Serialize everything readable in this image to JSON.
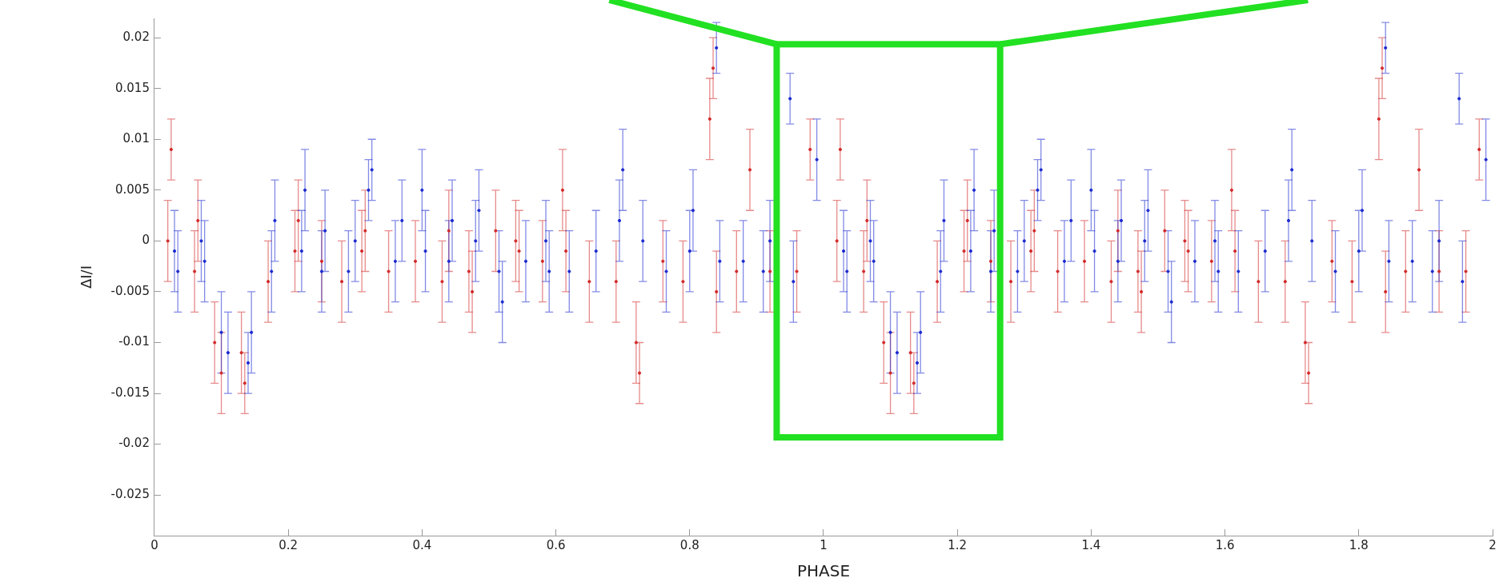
{
  "chart_data": {
    "type": "scatter",
    "xlabel": "PHASE",
    "ylabel": "ΔI/I",
    "xlim": [
      0,
      2
    ],
    "xticks": [
      0,
      0.2,
      0.4,
      0.6,
      0.8,
      1,
      1.2,
      1.4,
      1.6,
      1.8,
      2
    ],
    "ylim": [
      -0.029,
      0.0219
    ],
    "yticks": [
      -0.025,
      -0.02,
      -0.015,
      -0.01,
      -0.005,
      0,
      0.005,
      0.01,
      0.015,
      0.02
    ],
    "grid": false,
    "legend": false,
    "marker": "circle",
    "series": [
      {
        "color": "#d42a2a",
        "x": [
          0.02,
          0.025,
          0.06,
          0.065,
          0.09,
          0.1,
          0.13,
          0.135,
          0.17,
          0.21,
          0.215,
          0.25,
          0.28,
          0.31,
          0.315,
          0.35,
          0.39,
          0.43,
          0.44,
          0.47,
          0.475,
          0.51,
          0.54,
          0.545,
          0.58,
          0.61,
          0.615,
          0.65,
          0.69,
          0.72,
          0.725,
          0.76,
          0.79,
          0.83,
          0.835,
          0.84,
          0.87,
          0.89,
          0.92,
          0.96,
          0.98,
          1.02,
          1.025,
          1.06,
          1.065,
          1.09,
          1.1,
          1.13,
          1.135,
          1.17,
          1.21,
          1.215,
          1.25,
          1.28,
          1.31,
          1.315,
          1.35,
          1.39,
          1.43,
          1.44,
          1.47,
          1.475,
          1.51,
          1.54,
          1.545,
          1.58,
          1.61,
          1.615,
          1.65,
          1.69,
          1.72,
          1.725,
          1.76,
          1.79,
          1.83,
          1.835,
          1.84,
          1.87,
          1.89,
          1.92,
          1.96,
          1.98
        ],
        "values": [
          0,
          0.009,
          -0.003,
          0.002,
          -0.01,
          -0.013,
          -0.011,
          -0.014,
          -0.004,
          -0.001,
          0.002,
          -0.002,
          -0.004,
          -0.001,
          0.001,
          -0.003,
          -0.002,
          -0.004,
          0.001,
          -0.003,
          -0.005,
          0.001,
          0,
          -0.001,
          -0.002,
          0.005,
          -0.001,
          -0.004,
          -0.004,
          -0.01,
          -0.013,
          -0.002,
          -0.004,
          0.012,
          0.017,
          -0.005,
          -0.003,
          0.007,
          -0.003,
          -0.003,
          0.009,
          0,
          0.009,
          -0.003,
          0.002,
          -0.01,
          -0.013,
          -0.011,
          -0.014,
          -0.004,
          -0.001,
          0.002,
          -0.002,
          -0.004,
          -0.001,
          0.001,
          -0.003,
          -0.002,
          -0.004,
          0.001,
          -0.003,
          -0.005,
          0.001,
          0,
          -0.001,
          -0.002,
          0.005,
          -0.001,
          -0.004,
          -0.004,
          -0.01,
          -0.013,
          -0.002,
          -0.004,
          0.012,
          0.017,
          -0.005,
          -0.003,
          0.007,
          -0.003,
          -0.003,
          0.009
        ],
        "errors": [
          0.004,
          0.003,
          0.004,
          0.004,
          0.004,
          0.004,
          0.004,
          0.003,
          0.004,
          0.004,
          0.004,
          0.004,
          0.004,
          0.004,
          0.004,
          0.004,
          0.004,
          0.004,
          0.004,
          0.004,
          0.004,
          0.004,
          0.004,
          0.004,
          0.004,
          0.004,
          0.004,
          0.004,
          0.004,
          0.004,
          0.003,
          0.004,
          0.004,
          0.004,
          0.003,
          0.004,
          0.004,
          0.004,
          0.004,
          0.004,
          0.003,
          0.004,
          0.003,
          0.004,
          0.004,
          0.004,
          0.004,
          0.004,
          0.003,
          0.004,
          0.004,
          0.004,
          0.004,
          0.004,
          0.004,
          0.004,
          0.004,
          0.004,
          0.004,
          0.004,
          0.004,
          0.004,
          0.004,
          0.004,
          0.004,
          0.004,
          0.004,
          0.004,
          0.004,
          0.004,
          0.004,
          0.003,
          0.004,
          0.004,
          0.004,
          0.003,
          0.004,
          0.004,
          0.004,
          0.004,
          0.004,
          0.003
        ]
      },
      {
        "color": "#1c2ad0",
        "x": [
          0.03,
          0.035,
          0.07,
          0.075,
          0.1,
          0.11,
          0.14,
          0.145,
          0.175,
          0.18,
          0.22,
          0.225,
          0.25,
          0.255,
          0.29,
          0.3,
          0.32,
          0.325,
          0.36,
          0.37,
          0.4,
          0.405,
          0.44,
          0.445,
          0.48,
          0.485,
          0.515,
          0.52,
          0.555,
          0.585,
          0.59,
          0.62,
          0.66,
          0.695,
          0.7,
          0.73,
          0.765,
          0.8,
          0.805,
          0.84,
          0.845,
          0.88,
          0.91,
          0.92,
          0.95,
          0.955,
          0.99,
          1.03,
          1.035,
          1.07,
          1.075,
          1.1,
          1.11,
          1.14,
          1.145,
          1.175,
          1.18,
          1.22,
          1.225,
          1.25,
          1.255,
          1.29,
          1.3,
          1.32,
          1.325,
          1.36,
          1.37,
          1.4,
          1.405,
          1.44,
          1.445,
          1.48,
          1.485,
          1.515,
          1.52,
          1.555,
          1.585,
          1.59,
          1.62,
          1.66,
          1.695,
          1.7,
          1.73,
          1.765,
          1.8,
          1.805,
          1.84,
          1.845,
          1.88,
          1.91,
          1.92,
          1.95,
          1.955,
          1.99
        ],
        "values": [
          -0.001,
          -0.003,
          0,
          -0.002,
          -0.009,
          -0.011,
          -0.012,
          -0.009,
          -0.003,
          0.002,
          -0.001,
          0.005,
          -0.003,
          0.001,
          -0.003,
          0,
          0.005,
          0.007,
          -0.002,
          0.002,
          0.005,
          -0.001,
          -0.002,
          0.002,
          0,
          0.003,
          -0.003,
          -0.006,
          -0.002,
          0,
          -0.003,
          -0.003,
          -0.001,
          0.002,
          0.007,
          0,
          -0.003,
          -0.001,
          0.003,
          0.019,
          -0.002,
          -0.002,
          -0.003,
          0,
          0.014,
          -0.004,
          0.008,
          -0.001,
          -0.003,
          0,
          -0.002,
          -0.009,
          -0.011,
          -0.012,
          -0.009,
          -0.003,
          0.002,
          -0.001,
          0.005,
          -0.003,
          0.001,
          -0.003,
          0,
          0.005,
          0.007,
          -0.002,
          0.002,
          0.005,
          -0.001,
          -0.002,
          0.002,
          0,
          0.003,
          -0.003,
          -0.006,
          -0.002,
          0,
          -0.003,
          -0.003,
          -0.001,
          0.002,
          0.007,
          0,
          -0.003,
          -0.001,
          0.003,
          0.019,
          -0.002,
          -0.002,
          -0.003,
          0,
          0.014,
          -0.004,
          0.008
        ],
        "errors": [
          0.004,
          0.004,
          0.004,
          0.004,
          0.004,
          0.004,
          0.003,
          0.004,
          0.004,
          0.004,
          0.004,
          0.004,
          0.004,
          0.004,
          0.004,
          0.004,
          0.003,
          0.003,
          0.004,
          0.004,
          0.004,
          0.004,
          0.004,
          0.004,
          0.004,
          0.004,
          0.004,
          0.004,
          0.004,
          0.004,
          0.004,
          0.004,
          0.004,
          0.004,
          0.004,
          0.004,
          0.004,
          0.004,
          0.004,
          0.0025,
          0.004,
          0.004,
          0.004,
          0.004,
          0.0025,
          0.004,
          0.004,
          0.004,
          0.004,
          0.004,
          0.004,
          0.004,
          0.004,
          0.003,
          0.004,
          0.004,
          0.004,
          0.004,
          0.004,
          0.004,
          0.004,
          0.004,
          0.004,
          0.003,
          0.003,
          0.004,
          0.004,
          0.004,
          0.004,
          0.004,
          0.004,
          0.004,
          0.004,
          0.004,
          0.004,
          0.004,
          0.004,
          0.004,
          0.004,
          0.004,
          0.004,
          0.004,
          0.004,
          0.004,
          0.004,
          0.004,
          0.0025,
          0.004,
          0.004,
          0.004,
          0.004,
          0.0025,
          0.004,
          0.004
        ]
      }
    ]
  }
}
